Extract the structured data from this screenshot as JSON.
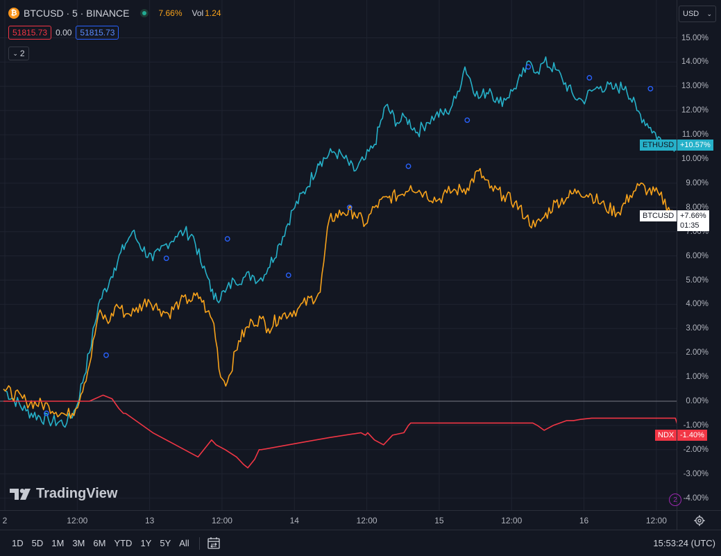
{
  "header": {
    "symbol_title": "BTCUSD · 5 · BINANCE",
    "symbol_icon": "bitcoin-icon",
    "change_pct": "7.66%",
    "vol_label": "Vol",
    "vol_value": "1.24",
    "bid": "51815.73",
    "spread": "0.00",
    "ask": "51815.73",
    "indicators_count": "2"
  },
  "currency": "USD",
  "watermark": "TradingView",
  "range_buttons": [
    "1D",
    "5D",
    "1M",
    "3M",
    "6M",
    "YTD",
    "1Y",
    "5Y",
    "All"
  ],
  "clock": "15:53:24 (UTC)",
  "scroll_badge": "2",
  "colors": {
    "background": "#131722",
    "ETHUSD": "#26b1c9",
    "BTCUSD": "#f7a21b",
    "NDX": "#f23645",
    "zero_line": "#787b86"
  },
  "tags": {
    "ETHUSD": {
      "name": "ETHUSD",
      "value": "+10.57%"
    },
    "BTCUSD": {
      "name": "BTCUSD",
      "value": "+7.66%",
      "countdown": "01:35"
    },
    "NDX": {
      "name": "NDX",
      "value": "-1.40%"
    }
  },
  "chart_data": {
    "type": "line",
    "y_unit": "%",
    "ylim": [
      -4.4,
      16.5
    ],
    "y_ticks": [
      "15.00%",
      "14.00%",
      "13.00%",
      "12.00%",
      "11.00%",
      "10.00%",
      "9.00%",
      "8.00%",
      "7.00%",
      "6.00%",
      "5.00%",
      "4.00%",
      "3.00%",
      "2.00%",
      "1.00%",
      "0.00%",
      "-1.00%",
      "-2.00%",
      "-3.00%",
      "-4.00%"
    ],
    "x_ticks": [
      "2",
      "12:00",
      "13",
      "12:00",
      "14",
      "12:00",
      "15",
      "12:00",
      "16",
      "12:00"
    ],
    "grid": true,
    "series": [
      {
        "name": "ETHUSD",
        "x": [
          0,
          0.5,
          1.0,
          1.4,
          1.6,
          1.9,
          2.1,
          2.35,
          2.45,
          2.7,
          2.85,
          3.0,
          3.3,
          3.45,
          3.6,
          3.8,
          4.0,
          4.2,
          4.4,
          4.55,
          4.65,
          4.9,
          5.1,
          5.3,
          5.5,
          5.65,
          5.85,
          6.1,
          6.4,
          6.7,
          6.95,
          7.0,
          7.3,
          7.5,
          7.75,
          8.0,
          8.2,
          8.45,
          8.7,
          8.9,
          9.15,
          9.35,
          9.55,
          9.8,
          10.0,
          10.2,
          10.5,
          10.75,
          10.95,
          11.25,
          11.45,
          11.65,
          11.8,
          11.95,
          12.2,
          12.35,
          12.6,
          12.8,
          13.0,
          13.2,
          13.5,
          13.75,
          14.0,
          14.3,
          14.55,
          14.75,
          14.97,
          15.0
        ],
        "y": [
          0.5,
          -0.4,
          -0.8,
          -0.9,
          -0.3,
          2.0,
          4.0,
          5.0,
          5.5,
          6.5,
          7.0,
          6.5,
          5.8,
          6.2,
          6.5,
          6.8,
          7.0,
          6.8,
          5.5,
          5.0,
          4.2,
          4.5,
          5.0,
          5.1,
          5.2,
          5.0,
          5.5,
          6.5,
          7.9,
          8.8,
          9.8,
          9.9,
          10.3,
          10.1,
          9.5,
          10.0,
          10.6,
          12.2,
          11.5,
          11.7,
          11.1,
          11.5,
          11.8,
          11.9,
          12.5,
          13.8,
          12.5,
          12.9,
          12.3,
          12.8,
          13.4,
          14.0,
          13.6,
          14.0,
          13.7,
          13.3,
          12.6,
          12.4,
          12.8,
          13.0,
          12.9,
          13.0,
          12.0,
          11.3,
          10.7,
          10.6,
          10.57,
          10.57
        ]
      },
      {
        "name": "BTCUSD",
        "x": [
          0,
          0.5,
          1.0,
          1.4,
          1.6,
          1.9,
          2.1,
          2.35,
          2.5,
          2.7,
          2.9,
          3.2,
          3.45,
          3.65,
          3.9,
          4.1,
          4.35,
          4.5,
          4.65,
          4.8,
          4.95,
          5.2,
          5.5,
          5.7,
          5.85,
          6.1,
          6.5,
          7.0,
          7.2,
          7.5,
          7.75,
          8.0,
          8.2,
          8.5,
          8.75,
          9.0,
          9.3,
          9.6,
          9.8,
          10.0,
          10.25,
          10.5,
          10.75,
          11.05,
          11.3,
          11.55,
          11.75,
          11.95,
          12.2,
          12.45,
          12.7,
          13.0,
          13.3,
          13.6,
          13.85,
          14.05,
          14.25,
          14.5,
          14.7,
          14.85,
          14.97
        ],
        "y": [
          0.5,
          0.0,
          -0.2,
          -0.6,
          -0.3,
          1.5,
          3.6,
          3.3,
          4.0,
          3.6,
          3.7,
          4.2,
          3.8,
          3.6,
          4.1,
          4.2,
          4.3,
          3.7,
          3.2,
          1.0,
          0.8,
          2.5,
          3.3,
          3.4,
          3.0,
          3.5,
          3.8,
          4.5,
          7.5,
          7.8,
          7.8,
          7.3,
          8.0,
          8.4,
          8.5,
          8.9,
          8.6,
          8.3,
          8.6,
          8.7,
          8.8,
          9.5,
          8.8,
          8.5,
          8.2,
          7.6,
          7.2,
          7.6,
          8.2,
          8.4,
          8.7,
          8.5,
          8.0,
          7.8,
          8.5,
          8.9,
          8.7,
          8.5,
          8.0,
          7.66,
          7.66
        ]
      },
      {
        "name": "NDX",
        "x": [
          0,
          1.0,
          1.9,
          2.2,
          2.4,
          2.55,
          2.65,
          2.7,
          3.3,
          4.3,
          4.6,
          4.7,
          4.9,
          5.15,
          5.3,
          5.4,
          5.55,
          5.65,
          5.7,
          6.6,
          7.2,
          7.9,
          8.0,
          8.05,
          8.2,
          8.4,
          8.6,
          8.85,
          8.95,
          9.0,
          11.0,
          11.7,
          11.8,
          11.95,
          12.15,
          12.3,
          12.45,
          12.6,
          12.75,
          13.0,
          14.0,
          14.85,
          14.97
        ],
        "y": [
          0.0,
          0.0,
          0.0,
          0.25,
          0.1,
          -0.3,
          -0.5,
          -0.5,
          -1.3,
          -2.3,
          -1.6,
          -1.8,
          -2.0,
          -2.3,
          -2.6,
          -2.75,
          -2.4,
          -2.0,
          -2.0,
          -1.7,
          -1.5,
          -1.3,
          -1.4,
          -1.3,
          -1.6,
          -1.8,
          -1.4,
          -1.3,
          -1.0,
          -0.9,
          -0.9,
          -0.9,
          -1.0,
          -1.2,
          -1.0,
          -0.9,
          -0.8,
          -0.8,
          -0.75,
          -0.7,
          -0.7,
          -0.7,
          -1.4
        ]
      }
    ],
    "markers": [
      {
        "series": "ETHUSD",
        "x": 0.95,
        "y": -0.5
      },
      {
        "series": "ETHUSD",
        "x": 2.27,
        "y": 1.9
      },
      {
        "series": "ETHUSD",
        "x": 3.6,
        "y": 5.9
      },
      {
        "series": "ETHUSD",
        "x": 4.95,
        "y": 6.7
      },
      {
        "series": "ETHUSD",
        "x": 6.3,
        "y": 5.2
      },
      {
        "series": "ETHUSD",
        "x": 7.65,
        "y": 8.0
      },
      {
        "series": "ETHUSD",
        "x": 8.95,
        "y": 9.7
      },
      {
        "series": "ETHUSD",
        "x": 10.25,
        "y": 11.6
      },
      {
        "series": "ETHUSD",
        "x": 11.6,
        "y": 13.8
      },
      {
        "series": "ETHUSD",
        "x": 12.95,
        "y": 13.35
      },
      {
        "series": "ETHUSD",
        "x": 14.3,
        "y": 12.9
      }
    ]
  }
}
